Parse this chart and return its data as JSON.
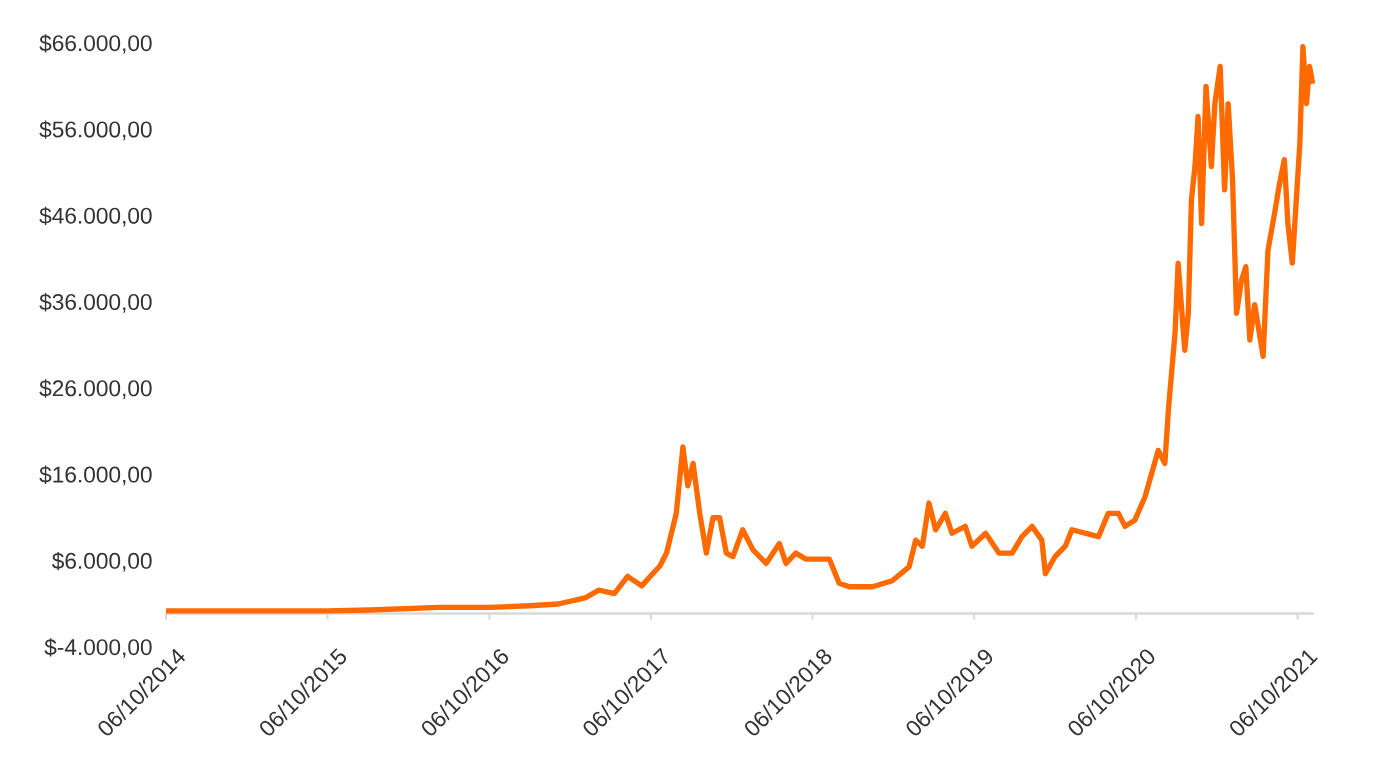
{
  "chart_data": {
    "type": "line",
    "color": "#ff6a00",
    "line_style": "solid",
    "marker": "none",
    "x": [
      "2014-10-06",
      "2015-01-15",
      "2015-06-01",
      "2015-10-06",
      "2016-01-10",
      "2016-06-15",
      "2016-10-06",
      "2017-01-05",
      "2017-03-10",
      "2017-05-10",
      "2017-06-10",
      "2017-07-15",
      "2017-08-14",
      "2017-09-15",
      "2017-10-06",
      "2017-10-26",
      "2017-11-10",
      "2017-12-02",
      "2017-12-17",
      "2017-12-28",
      "2018-01-09",
      "2018-01-24",
      "2018-02-08",
      "2018-02-23",
      "2018-03-10",
      "2018-03-25",
      "2018-04-09",
      "2018-05-01",
      "2018-05-24",
      "2018-06-23",
      "2018-07-23",
      "2018-08-07",
      "2018-08-29",
      "2018-09-21",
      "2018-11-13",
      "2018-12-05",
      "2018-12-28",
      "2019-02-18",
      "2019-04-04",
      "2019-05-12",
      "2019-05-27",
      "2019-06-11",
      "2019-06-26",
      "2019-07-11",
      "2019-08-02",
      "2019-08-17",
      "2019-09-16",
      "2019-10-01",
      "2019-11-01",
      "2019-12-01",
      "2019-12-31",
      "2020-01-22",
      "2020-02-14",
      "2020-03-07",
      "2020-03-15",
      "2020-04-06",
      "2020-04-29",
      "2020-05-14",
      "2020-06-13",
      "2020-07-13",
      "2020-08-04",
      "2020-08-27",
      "2020-09-11",
      "2020-10-03",
      "2020-10-26",
      "2020-11-25",
      "2020-12-10",
      "2020-12-18",
      "2021-01-02",
      "2021-01-09",
      "2021-01-24",
      "2021-02-01",
      "2021-02-08",
      "2021-02-16",
      "2021-02-23",
      "2021-03-03",
      "2021-03-13",
      "2021-03-25",
      "2021-04-02",
      "2021-04-14",
      "2021-04-24",
      "2021-05-02",
      "2021-05-12",
      "2021-05-21",
      "2021-06-01",
      "2021-06-11",
      "2021-06-20",
      "2021-07-01",
      "2021-07-20",
      "2021-07-31",
      "2021-08-15",
      "2021-08-25",
      "2021-09-06",
      "2021-09-14",
      "2021-09-24",
      "2021-10-03",
      "2021-10-11",
      "2021-10-18",
      "2021-10-26",
      "2021-11-02",
      "2021-11-09"
    ],
    "values": [
      300,
      300,
      300,
      300,
      400,
      700,
      700,
      900,
      1100,
      1800,
      2700,
      2300,
      4300,
      3200,
      4400,
      5500,
      7000,
      11600,
      19300,
      14800,
      17400,
      11600,
      7000,
      11100,
      11100,
      7000,
      6600,
      9700,
      7400,
      5800,
      8100,
      5800,
      7000,
      6300,
      6300,
      3500,
      3100,
      3100,
      3800,
      5400,
      8500,
      7800,
      12800,
      9700,
      11600,
      9300,
      10100,
      7800,
      9300,
      7000,
      7000,
      8900,
      10100,
      8500,
      4600,
      6600,
      7800,
      9700,
      9300,
      8900,
      11600,
      11600,
      10100,
      10800,
      13500,
      18900,
      17400,
      23600,
      32500,
      40600,
      30500,
      34800,
      47900,
      51800,
      57600,
      45200,
      61100,
      51800,
      59100,
      63400,
      49100,
      59100,
      50200,
      34800,
      38600,
      40200,
      31700,
      35800,
      29800,
      42100,
      46400,
      49500,
      52600,
      45200,
      40600,
      47900,
      54500,
      65700,
      59100,
      63400,
      61400
    ],
    "xlim": [
      "2014-10-06",
      "2021-11-12"
    ],
    "xticks": [
      {
        "value": "2014-10-06",
        "label": "06/10/2014"
      },
      {
        "value": "2015-10-06",
        "label": "06/10/2015"
      },
      {
        "value": "2016-10-06",
        "label": "06/10/2016"
      },
      {
        "value": "2017-10-06",
        "label": "06/10/2017"
      },
      {
        "value": "2018-10-06",
        "label": "06/10/2018"
      },
      {
        "value": "2019-10-06",
        "label": "06/10/2019"
      },
      {
        "value": "2020-10-06",
        "label": "06/10/2020"
      },
      {
        "value": "2021-10-06",
        "label": "06/10/2021"
      }
    ],
    "ylim": [
      -4000,
      66000
    ],
    "yticks": [
      {
        "value": -4000,
        "label": "$-4.000,00"
      },
      {
        "value": 6000,
        "label": "$6.000,00"
      },
      {
        "value": 16000,
        "label": "$16.000,00"
      },
      {
        "value": 26000,
        "label": "$26.000,00"
      },
      {
        "value": 36000,
        "label": "$36.000,00"
      },
      {
        "value": 46000,
        "label": "$46.000,00"
      },
      {
        "value": 56000,
        "label": "$56.000,00"
      },
      {
        "value": 66000,
        "label": "$66.000,00"
      }
    ]
  }
}
